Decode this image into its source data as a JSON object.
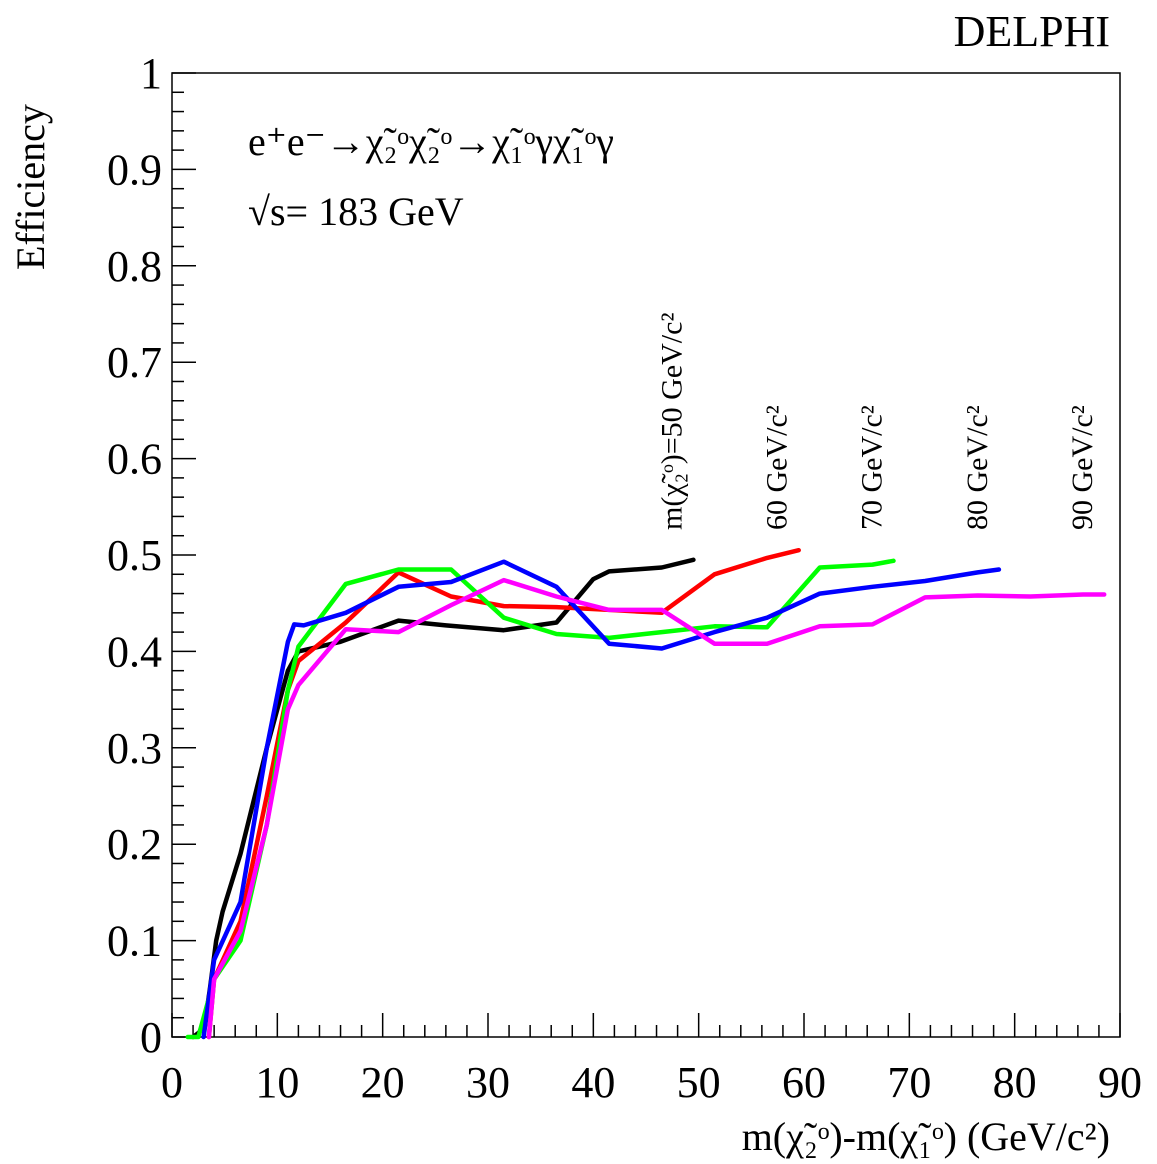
{
  "chart_data": {
    "type": "line",
    "experiment_label": "DELPHI",
    "process_label": "e⁺e⁻→χ̃₂ᵒχ̃₂ᵒ→χ̃₁ᵒγχ̃₁ᵒγ",
    "energy_label": "√s= 183 GeV",
    "xlabel": "m(χ̃₂ᵒ)-m(χ̃₁ᵒ) (GeV/c²)",
    "ylabel": "Efficiency",
    "xlim": [
      0,
      90
    ],
    "ylim": [
      0,
      1
    ],
    "x_ticks": [
      0,
      10,
      20,
      30,
      40,
      50,
      60,
      70,
      80,
      90
    ],
    "x_tick_labels": [
      "0",
      "10",
      "20",
      "30",
      "40",
      "50",
      "60",
      "70",
      "80",
      "90"
    ],
    "y_ticks": [
      0,
      0.1,
      0.2,
      0.3,
      0.4,
      0.5,
      0.6,
      0.7,
      0.8,
      0.9,
      1
    ],
    "y_tick_labels": [
      "0",
      "0.1",
      "0.2",
      "0.3",
      "0.4",
      "0.5",
      "0.6",
      "0.7",
      "0.8",
      "0.9",
      "1"
    ],
    "grid": false,
    "series": [
      {
        "name": "m(χ̃₂ᵒ)=50 GeV/c²",
        "label": "m(χ̃₂ᵒ)=50 GeV/c²",
        "color": "#000000",
        "x": [
          2.0,
          2.6,
          3.2,
          3.6,
          4.2,
          4.8,
          6.5,
          9.0,
          11.0,
          12.0,
          16.0,
          21.5,
          26.0,
          31.5,
          36.5,
          40.0,
          41.5,
          46.5,
          49.5
        ],
        "y": [
          0.0,
          0.005,
          0.02,
          0.05,
          0.1,
          0.13,
          0.19,
          0.3,
          0.38,
          0.4,
          0.41,
          0.432,
          0.427,
          0.422,
          0.43,
          0.475,
          0.483,
          0.487,
          0.495
        ]
      },
      {
        "name": "60 GeV/c²",
        "label": "60 GeV/c²",
        "color": "#ff0000",
        "x": [
          3.5,
          4.0,
          6.5,
          9.0,
          11.0,
          12.0,
          16.5,
          21.5,
          26.5,
          31.5,
          36.5,
          41.5,
          46.5,
          51.5,
          56.5,
          59.5
        ],
        "y": [
          0.0,
          0.06,
          0.12,
          0.25,
          0.36,
          0.39,
          0.43,
          0.482,
          0.457,
          0.447,
          0.446,
          0.443,
          0.44,
          0.48,
          0.497,
          0.505
        ]
      },
      {
        "name": "70 GeV/c²",
        "label": "70 GeV/c²",
        "color": "#00ff00",
        "x": [
          1.5,
          2.5,
          3.0,
          4.0,
          6.5,
          9.0,
          11.0,
          12.0,
          16.5,
          21.5,
          26.5,
          31.5,
          36.5,
          41.5,
          46.5,
          51.5,
          56.5,
          61.5,
          66.5,
          68.5
        ],
        "y": [
          0.0,
          0.0,
          0.02,
          0.06,
          0.1,
          0.22,
          0.36,
          0.405,
          0.47,
          0.485,
          0.485,
          0.435,
          0.418,
          0.414,
          0.42,
          0.426,
          0.425,
          0.487,
          0.49,
          0.494
        ]
      },
      {
        "name": "80 GeV/c²",
        "label": "80 GeV/c²",
        "color": "#0000ff",
        "x": [
          3.0,
          4.0,
          6.5,
          9.0,
          11.0,
          11.6,
          12.5,
          16.5,
          21.5,
          26.5,
          31.5,
          36.5,
          41.5,
          46.5,
          51.5,
          56.5,
          61.5,
          66.5,
          71.5,
          76.5,
          78.5
        ],
        "y": [
          0.0,
          0.08,
          0.14,
          0.3,
          0.41,
          0.428,
          0.427,
          0.44,
          0.467,
          0.472,
          0.493,
          0.467,
          0.408,
          0.403,
          0.42,
          0.435,
          0.46,
          0.467,
          0.473,
          0.482,
          0.485
        ]
      },
      {
        "name": "90 GeV/c²",
        "label": "90 GeV/c²",
        "color": "#ff00ff",
        "x": [
          3.5,
          4.0,
          6.5,
          9.0,
          11.0,
          12.0,
          16.5,
          21.5,
          26.5,
          31.5,
          36.5,
          41.5,
          46.5,
          51.5,
          56.5,
          61.5,
          66.5,
          71.5,
          76.5,
          81.5,
          86.5,
          88.5
        ],
        "y": [
          0.0,
          0.06,
          0.11,
          0.22,
          0.34,
          0.365,
          0.423,
          0.42,
          0.448,
          0.474,
          0.457,
          0.443,
          0.443,
          0.408,
          0.408,
          0.426,
          0.428,
          0.456,
          0.458,
          0.457,
          0.459,
          0.459
        ]
      }
    ]
  }
}
